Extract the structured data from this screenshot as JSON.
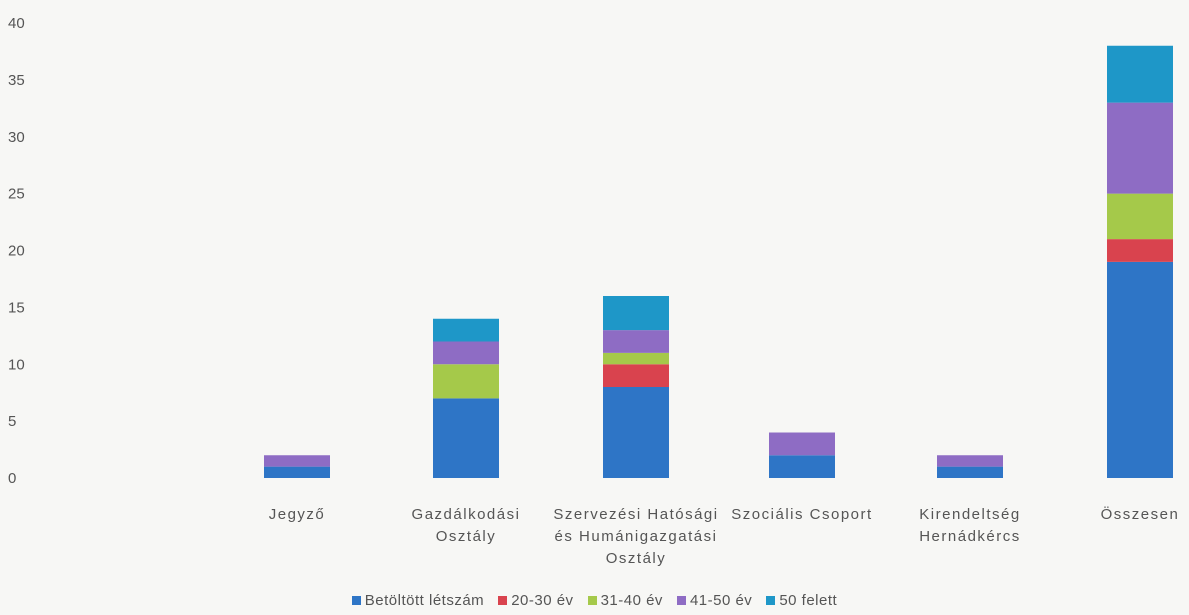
{
  "chart_data": {
    "type": "bar",
    "stacked": true,
    "title": "",
    "xlabel": "",
    "ylabel": "",
    "ylim": [
      0,
      40
    ],
    "yticks": [
      0,
      5,
      10,
      15,
      20,
      25,
      30,
      35,
      40
    ],
    "ytick_labels": [
      "0",
      "5",
      "10",
      "15",
      "20",
      "25",
      "30",
      "35",
      "40"
    ],
    "grid": false,
    "legend_position": "bottom",
    "categories": [
      [
        "Jegyző"
      ],
      [
        "Gazdálkodási",
        "Osztály"
      ],
      [
        "Szervezési Hatósági",
        "és Humánigazgatási",
        "Osztály"
      ],
      [
        "Szociális Csoport"
      ],
      [
        "Kirendeltség",
        "Hernádkércs"
      ],
      [
        "Összesen"
      ]
    ],
    "series": [
      {
        "name": "Betöltött létszám",
        "color": "#2e75c6",
        "values": [
          1,
          7,
          8,
          2,
          1,
          19
        ]
      },
      {
        "name": "20-30 év",
        "color": "#d9434e",
        "values": [
          0,
          0,
          2,
          0,
          0,
          2
        ]
      },
      {
        "name": "31-40 év",
        "color": "#a5c94a",
        "values": [
          0,
          3,
          1,
          0,
          0,
          4
        ]
      },
      {
        "name": "41-50 év",
        "color": "#8e6cc4",
        "values": [
          1,
          2,
          2,
          2,
          1,
          8
        ]
      },
      {
        "name": "50 felett",
        "color": "#1e97c8",
        "values": [
          0,
          2,
          3,
          0,
          0,
          5
        ]
      }
    ]
  }
}
